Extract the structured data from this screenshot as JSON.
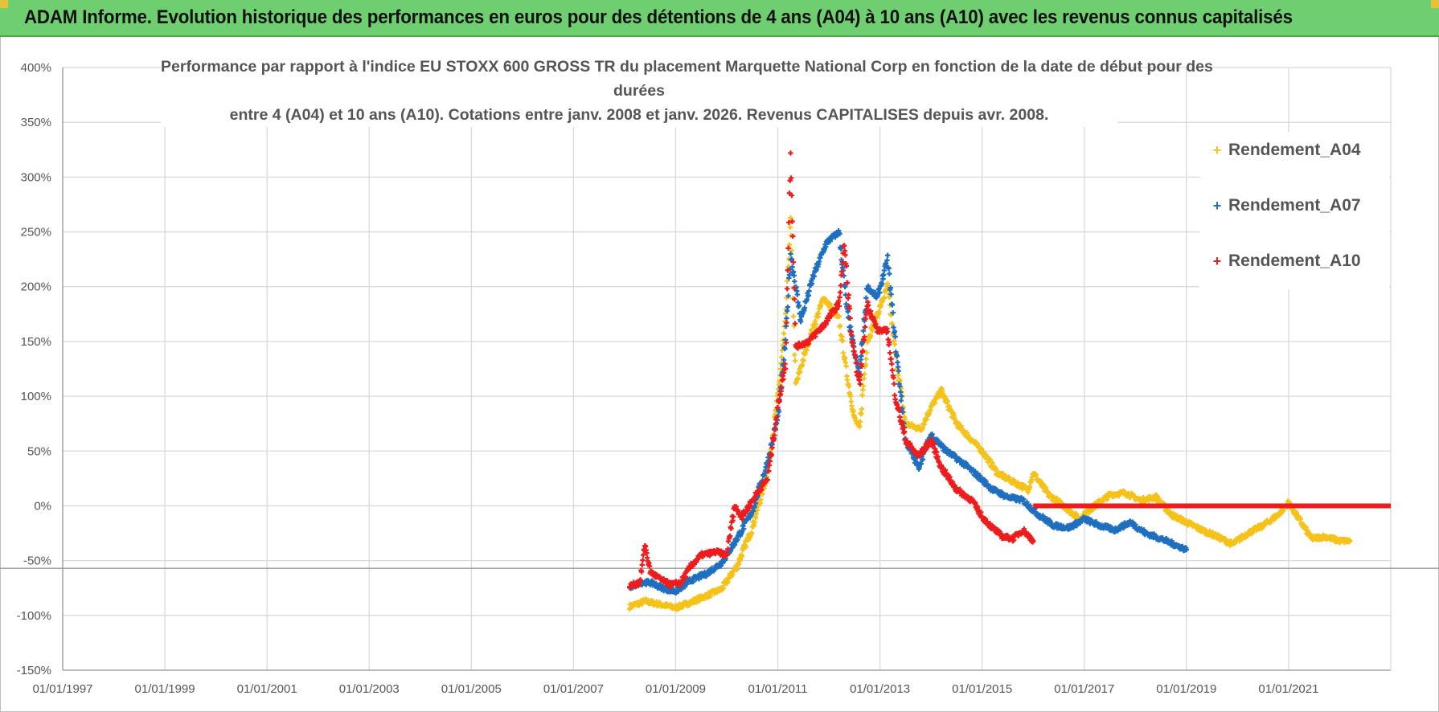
{
  "banner": {
    "title": "ADAM Informe. Evolution historique des performances en euros pour des détentions de 4 ans (A04) à 10 ans (A10) avec les revenus connus capitalisés"
  },
  "colors": {
    "banner_bg": "#6fce6f",
    "A04": "#f5c21b",
    "A07": "#1f6fc0",
    "A10": "#ee1c1c"
  },
  "chart_data": {
    "type": "scatter",
    "title_lines": [
      "Performance par rapport à l'indice EU STOXX 600 GROSS TR  du placement Marquette National Corp en fonction de la date de début pour des",
      "durées",
      "entre 4 (A04) et 10 ans (A10).  Cotations entre janv. 2008 et janv. 2026. Revenus CAPITALISES  depuis avr. 2008."
    ],
    "xlabel": "",
    "ylabel": "",
    "x_unit": "year",
    "xlim": [
      1997.0,
      2023.0
    ],
    "ylim": [
      -150,
      400
    ],
    "y_ticks": [
      -150,
      -100,
      -50,
      0,
      50,
      100,
      150,
      200,
      250,
      300,
      350,
      400
    ],
    "y_tick_labels": [
      "-150%",
      "-100%",
      "-50%",
      "0%",
      "50%",
      "100%",
      "150%",
      "200%",
      "250%",
      "300%",
      "350%",
      "400%"
    ],
    "x_ticks": [
      1997,
      1999,
      2001,
      2003,
      2005,
      2007,
      2009,
      2011,
      2013,
      2015,
      2017,
      2019,
      2021
    ],
    "x_tick_labels": [
      "01/01/1997",
      "01/01/1999",
      "01/01/2001",
      "01/01/2003",
      "01/01/2005",
      "01/01/2007",
      "01/01/2009",
      "01/01/2011",
      "01/01/2013",
      "01/01/2015",
      "01/01/2017",
      "01/01/2019",
      "01/01/2021"
    ],
    "grid": true,
    "legend_position": "top-right",
    "series": [
      {
        "name": "Rendement_A04",
        "key": "A04",
        "points": [
          [
            2008.1,
            -92
          ],
          [
            2008.4,
            -87
          ],
          [
            2008.7,
            -90
          ],
          [
            2009.0,
            -93
          ],
          [
            2009.3,
            -88
          ],
          [
            2009.6,
            -82
          ],
          [
            2009.9,
            -76
          ],
          [
            2010.2,
            -55
          ],
          [
            2010.5,
            -20
          ],
          [
            2010.8,
            30
          ],
          [
            2011.0,
            100
          ],
          [
            2011.15,
            170
          ],
          [
            2011.25,
            260
          ],
          [
            2011.35,
            110
          ],
          [
            2011.6,
            150
          ],
          [
            2011.9,
            190
          ],
          [
            2012.2,
            170
          ],
          [
            2012.35,
            120
          ],
          [
            2012.5,
            80
          ],
          [
            2012.6,
            70
          ],
          [
            2012.75,
            150
          ],
          [
            2012.95,
            175
          ],
          [
            2013.15,
            200
          ],
          [
            2013.3,
            140
          ],
          [
            2013.5,
            75
          ],
          [
            2013.8,
            70
          ],
          [
            2014.0,
            90
          ],
          [
            2014.2,
            105
          ],
          [
            2014.5,
            75
          ],
          [
            2014.8,
            60
          ],
          [
            2015.0,
            50
          ],
          [
            2015.3,
            30
          ],
          [
            2015.6,
            22
          ],
          [
            2015.9,
            15
          ],
          [
            2016.0,
            30
          ],
          [
            2016.3,
            10
          ],
          [
            2016.6,
            0
          ],
          [
            2016.9,
            -12
          ],
          [
            2017.2,
            0
          ],
          [
            2017.5,
            10
          ],
          [
            2017.8,
            12
          ],
          [
            2018.1,
            5
          ],
          [
            2018.4,
            8
          ],
          [
            2018.7,
            -8
          ],
          [
            2019.0,
            -15
          ],
          [
            2019.3,
            -22
          ],
          [
            2019.6,
            -28
          ],
          [
            2019.9,
            -35
          ],
          [
            2020.2,
            -25
          ],
          [
            2020.5,
            -18
          ],
          [
            2020.8,
            -8
          ],
          [
            2021.0,
            3
          ],
          [
            2021.2,
            -12
          ],
          [
            2021.45,
            -30
          ],
          [
            2021.7,
            -28
          ],
          [
            2022.0,
            -32
          ],
          [
            2022.2,
            -32
          ]
        ]
      },
      {
        "name": "Rendement_A07",
        "key": "A07",
        "points": [
          [
            2008.1,
            -75
          ],
          [
            2008.3,
            -70
          ],
          [
            2008.5,
            -70
          ],
          [
            2008.8,
            -76
          ],
          [
            2009.0,
            -78
          ],
          [
            2009.3,
            -68
          ],
          [
            2009.6,
            -62
          ],
          [
            2009.9,
            -52
          ],
          [
            2010.2,
            -30
          ],
          [
            2010.5,
            -5
          ],
          [
            2010.8,
            40
          ],
          [
            2011.0,
            80
          ],
          [
            2011.15,
            150
          ],
          [
            2011.25,
            230
          ],
          [
            2011.45,
            170
          ],
          [
            2011.7,
            210
          ],
          [
            2011.95,
            240
          ],
          [
            2012.2,
            250
          ],
          [
            2012.35,
            180
          ],
          [
            2012.5,
            140
          ],
          [
            2012.6,
            120
          ],
          [
            2012.75,
            200
          ],
          [
            2012.95,
            190
          ],
          [
            2013.15,
            225
          ],
          [
            2013.3,
            150
          ],
          [
            2013.5,
            60
          ],
          [
            2013.75,
            35
          ],
          [
            2014.0,
            65
          ],
          [
            2014.3,
            50
          ],
          [
            2014.6,
            40
          ],
          [
            2014.9,
            28
          ],
          [
            2015.2,
            15
          ],
          [
            2015.5,
            8
          ],
          [
            2015.8,
            5
          ],
          [
            2016.1,
            -8
          ],
          [
            2016.4,
            -18
          ],
          [
            2016.7,
            -20
          ],
          [
            2017.0,
            -12
          ],
          [
            2017.3,
            -18
          ],
          [
            2017.6,
            -22
          ],
          [
            2017.9,
            -15
          ],
          [
            2018.2,
            -25
          ],
          [
            2018.5,
            -30
          ],
          [
            2018.8,
            -36
          ],
          [
            2019.0,
            -40
          ]
        ]
      },
      {
        "name": "Rendement_A10",
        "key": "A10",
        "points": [
          [
            2008.1,
            -73
          ],
          [
            2008.3,
            -70
          ],
          [
            2008.4,
            -35
          ],
          [
            2008.5,
            -60
          ],
          [
            2008.7,
            -67
          ],
          [
            2008.9,
            -72
          ],
          [
            2009.1,
            -70
          ],
          [
            2009.3,
            -55
          ],
          [
            2009.5,
            -45
          ],
          [
            2009.8,
            -42
          ],
          [
            2010.0,
            -45
          ],
          [
            2010.15,
            0
          ],
          [
            2010.3,
            -10
          ],
          [
            2010.6,
            12
          ],
          [
            2010.8,
            25
          ],
          [
            2011.0,
            90
          ],
          [
            2011.15,
            130
          ],
          [
            2011.25,
            325
          ],
          [
            2011.35,
            145
          ],
          [
            2011.6,
            150
          ],
          [
            2011.9,
            165
          ],
          [
            2012.2,
            185
          ],
          [
            2012.3,
            240
          ],
          [
            2012.45,
            150
          ],
          [
            2012.6,
            110
          ],
          [
            2012.75,
            185
          ],
          [
            2012.95,
            160
          ],
          [
            2013.15,
            160
          ],
          [
            2013.3,
            100
          ],
          [
            2013.5,
            60
          ],
          [
            2013.75,
            45
          ],
          [
            2014.0,
            60
          ],
          [
            2014.2,
            35
          ],
          [
            2014.5,
            15
          ],
          [
            2014.8,
            5
          ],
          [
            2015.0,
            -10
          ],
          [
            2015.2,
            -20
          ],
          [
            2015.4,
            -28
          ],
          [
            2015.6,
            -30
          ],
          [
            2015.8,
            -22
          ],
          [
            2016.0,
            -32
          ]
        ]
      }
    ],
    "zero_line": {
      "series": "Rendement_A10",
      "from": 2016.0,
      "to": 2023.0,
      "value": 0
    }
  }
}
